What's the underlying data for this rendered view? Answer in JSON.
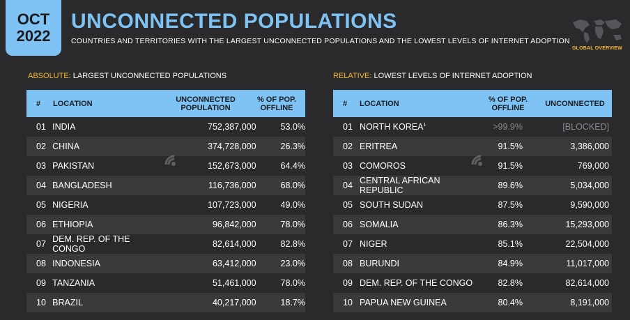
{
  "header": {
    "month": "OCT",
    "year": "2022",
    "title": "UNCONNECTED POPULATIONS",
    "subtitle": "COUNTRIES AND TERRITORIES WITH THE LARGEST UNCONNECTED POPULATIONS AND THE LOWEST LEVELS OF INTERNET ADOPTION",
    "badge": "GLOBAL OVERVIEW",
    "map_icon": "world-map-icon"
  },
  "colors": {
    "accent": "#7ec3f3",
    "highlight": "#f7b731",
    "bg": "#2a2a2c",
    "row_alt": "#3a3a3d"
  },
  "left": {
    "label_accent": "ABSOLUTE:",
    "label_text": " LARGEST UNCONNECTED POPULATIONS",
    "headers": {
      "num": "#",
      "loc": "LOCATION",
      "pop": "UNCONNECTED POPULATION",
      "pct": "% OF POP. OFFLINE"
    },
    "rows": [
      {
        "n": "01",
        "loc": "INDIA",
        "pop": "752,387,000",
        "pct": "53.0%"
      },
      {
        "n": "02",
        "loc": "CHINA",
        "pop": "374,728,000",
        "pct": "26.3%"
      },
      {
        "n": "03",
        "loc": "PAKISTAN",
        "pop": "152,673,000",
        "pct": "64.4%"
      },
      {
        "n": "04",
        "loc": "BANGLADESH",
        "pop": "116,736,000",
        "pct": "68.0%"
      },
      {
        "n": "05",
        "loc": "NIGERIA",
        "pop": "107,723,000",
        "pct": "49.0%"
      },
      {
        "n": "06",
        "loc": "ETHIOPIA",
        "pop": "96,842,000",
        "pct": "78.0%"
      },
      {
        "n": "07",
        "loc": "DEM. REP. OF THE CONGO",
        "pop": "82,614,000",
        "pct": "82.8%"
      },
      {
        "n": "08",
        "loc": "INDONESIA",
        "pop": "63,412,000",
        "pct": "23.0%"
      },
      {
        "n": "09",
        "loc": "TANZANIA",
        "pop": "51,461,000",
        "pct": "78.0%"
      },
      {
        "n": "10",
        "loc": "BRAZIL",
        "pop": "40,217,000",
        "pct": "18.7%"
      }
    ]
  },
  "right": {
    "label_accent": "RELATIVE:",
    "label_text": " LOWEST LEVELS OF INTERNET ADOPTION",
    "headers": {
      "num": "#",
      "loc": "LOCATION",
      "pct": "% OF POP. OFFLINE",
      "unconnected": "UNCONNECTED"
    },
    "rows": [
      {
        "n": "01",
        "loc": "NORTH KOREA",
        "sup": "1",
        "pct": ">99.9%",
        "unc": "[BLOCKED]",
        "muted": true
      },
      {
        "n": "02",
        "loc": "ERITREA",
        "pct": "91.5%",
        "unc": "3,386,000"
      },
      {
        "n": "03",
        "loc": "COMOROS",
        "pct": "91.5%",
        "unc": "769,000"
      },
      {
        "n": "04",
        "loc": "CENTRAL AFRICAN REPUBLIC",
        "pct": "89.6%",
        "unc": "5,034,000"
      },
      {
        "n": "05",
        "loc": "SOUTH SUDAN",
        "pct": "87.5%",
        "unc": "9,590,000"
      },
      {
        "n": "06",
        "loc": "SOMALIA",
        "pct": "86.3%",
        "unc": "15,293,000"
      },
      {
        "n": "07",
        "loc": "NIGER",
        "pct": "85.1%",
        "unc": "22,504,000"
      },
      {
        "n": "08",
        "loc": "BURUNDI",
        "pct": "84.9%",
        "unc": "11,017,000"
      },
      {
        "n": "09",
        "loc": "DEM. REP. OF THE CONGO",
        "pct": "82.8%",
        "unc": "82,614,000"
      },
      {
        "n": "10",
        "loc": "PAPUA NEW GUINEA",
        "pct": "80.4%",
        "unc": "8,191,000"
      }
    ]
  }
}
